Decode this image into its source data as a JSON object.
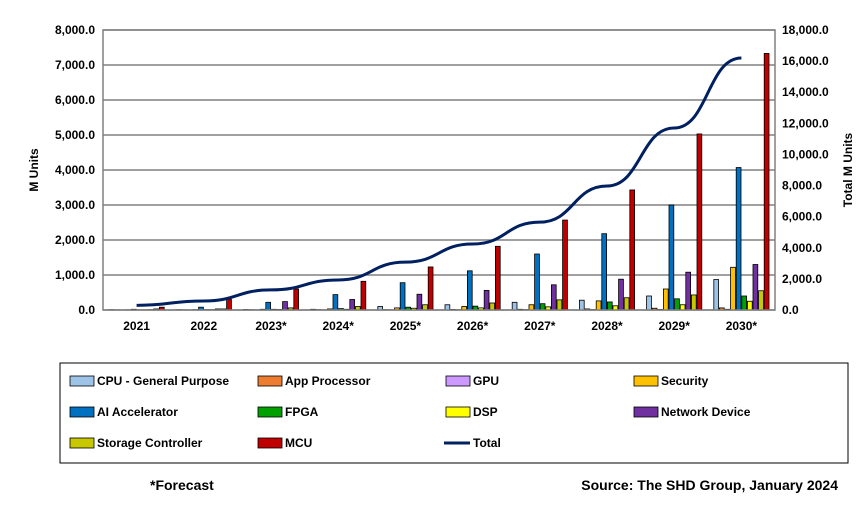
{
  "chart_data": {
    "type": "bar+line",
    "categories": [
      "2021",
      "2022",
      "2023*",
      "2024*",
      "2025*",
      "2026*",
      "2027*",
      "2028*",
      "2029*",
      "2030*"
    ],
    "ylabel": "M Units",
    "y2label": "Total M Units",
    "ylim": [
      0,
      8000
    ],
    "y2lim": [
      0,
      18000
    ],
    "yticks": [
      "0.0",
      "1,000.0",
      "2,000.0",
      "3,000.0",
      "4,000.0",
      "5,000.0",
      "6,000.0",
      "7,000.0",
      "8,000.0"
    ],
    "y2ticks": [
      "0.0",
      "2,000.0",
      "4,000.0",
      "6,000.0",
      "8,000.0",
      "10,000.0",
      "12,000.0",
      "14,000.0",
      "16,000.0",
      "18,000.0"
    ],
    "grid": true,
    "legend": "bottom",
    "series": [
      {
        "name": "CPU - General Purpose",
        "color": "#9DC3E6",
        "values": [
          10,
          10,
          15,
          20,
          100,
          150,
          220,
          280,
          400,
          870
        ]
      },
      {
        "name": "App Processor",
        "color": "#ED7D31",
        "values": [
          5,
          5,
          8,
          10,
          10,
          15,
          20,
          30,
          50,
          60
        ]
      },
      {
        "name": "GPU",
        "color": "#CC99FF",
        "values": [
          2,
          3,
          4,
          5,
          6,
          8,
          10,
          12,
          15,
          20
        ]
      },
      {
        "name": "Security",
        "color": "#FFC000",
        "values": [
          5,
          10,
          20,
          30,
          60,
          100,
          150,
          260,
          600,
          1220
        ]
      },
      {
        "name": "AI Accelerator",
        "color": "#0070C0",
        "values": [
          20,
          80,
          220,
          440,
          780,
          1120,
          1600,
          2180,
          3000,
          4070
        ]
      },
      {
        "name": "FPGA",
        "color": "#00A000",
        "values": [
          5,
          10,
          20,
          40,
          80,
          110,
          180,
          230,
          320,
          400
        ]
      },
      {
        "name": "DSP",
        "color": "#FFFF00",
        "values": [
          5,
          10,
          15,
          20,
          50,
          60,
          90,
          120,
          150,
          250
        ]
      },
      {
        "name": "Network Device",
        "color": "#7030A0",
        "values": [
          10,
          30,
          240,
          300,
          450,
          560,
          720,
          880,
          1080,
          1300
        ]
      },
      {
        "name": "Storage Controller",
        "color": "#C8C800",
        "values": [
          30,
          30,
          60,
          100,
          150,
          200,
          290,
          350,
          430,
          550
        ]
      },
      {
        "name": "MCU",
        "color": "#C00000",
        "values": [
          80,
          310,
          600,
          820,
          1230,
          1820,
          2570,
          3430,
          5030,
          7330
        ]
      }
    ],
    "total": {
      "name": "Total",
      "color": "#002060",
      "axis": "right",
      "values": [
        300,
        580,
        1290,
        1930,
        3080,
        4240,
        5650,
        7970,
        11700,
        16200
      ]
    }
  },
  "footer": {
    "forecast": "*Forecast",
    "source": "Source: The SHD Group, January 2024"
  }
}
